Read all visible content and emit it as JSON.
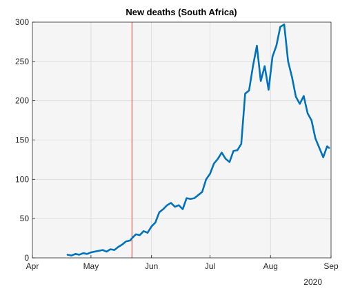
{
  "chart_data": {
    "type": "line",
    "title": "New deaths (South Africa)",
    "xlabel": "",
    "ylabel": "",
    "x_tick_labels": [
      "Apr",
      "May",
      "Jun",
      "Jul",
      "Aug",
      "Sep"
    ],
    "x_tick_dates": [
      "2020-04-01",
      "2020-05-01",
      "2020-06-01",
      "2020-07-01",
      "2020-08-01",
      "2020-09-01"
    ],
    "year_label": "2020",
    "xlim": [
      "2020-04-01",
      "2020-09-01"
    ],
    "ylim": [
      0,
      300
    ],
    "y_ticks": [
      0,
      50,
      100,
      150,
      200,
      250,
      300
    ],
    "grid": true,
    "background_color": "#f5f5f5",
    "line_color": "#0072bd",
    "vertical_marker": {
      "date": "2020-05-22",
      "color": "#c0392b"
    },
    "series": [
      {
        "x": [
          "2020-04-19",
          "2020-04-21",
          "2020-04-23",
          "2020-04-25",
          "2020-04-27",
          "2020-04-29",
          "2020-05-01",
          "2020-05-03",
          "2020-05-05",
          "2020-05-07",
          "2020-05-09",
          "2020-05-11",
          "2020-05-13",
          "2020-05-15",
          "2020-05-17",
          "2020-05-19",
          "2020-05-21",
          "2020-05-22",
          "2020-05-24",
          "2020-05-26",
          "2020-05-28",
          "2020-05-30",
          "2020-06-01",
          "2020-06-03",
          "2020-06-05",
          "2020-06-07",
          "2020-06-09",
          "2020-06-11",
          "2020-06-13",
          "2020-06-15",
          "2020-06-17",
          "2020-06-19",
          "2020-06-21",
          "2020-06-23",
          "2020-06-25",
          "2020-06-27",
          "2020-06-29",
          "2020-07-01",
          "2020-07-03",
          "2020-07-05",
          "2020-07-07",
          "2020-07-09",
          "2020-07-11",
          "2020-07-13",
          "2020-07-15",
          "2020-07-17",
          "2020-07-19",
          "2020-07-21",
          "2020-07-23",
          "2020-07-25",
          "2020-07-27",
          "2020-07-29",
          "2020-07-31",
          "2020-08-02",
          "2020-08-04",
          "2020-08-06",
          "2020-08-08",
          "2020-08-10",
          "2020-08-12",
          "2020-08-14",
          "2020-08-16",
          "2020-08-18",
          "2020-08-20",
          "2020-08-22",
          "2020-08-24",
          "2020-08-26",
          "2020-08-28",
          "2020-08-30",
          "2020-08-31"
        ],
        "y": [
          4,
          3,
          5,
          4,
          6,
          5,
          7,
          8,
          9,
          10,
          8,
          11,
          10,
          14,
          17,
          21,
          22,
          25,
          30,
          29,
          34,
          32,
          40,
          45,
          58,
          62,
          67,
          70,
          65,
          67,
          62,
          76,
          75,
          76,
          80,
          84,
          100,
          107,
          120,
          126,
          134,
          126,
          122,
          136,
          137,
          145,
          209,
          213,
          244,
          270,
          225,
          244,
          214,
          256,
          270,
          294,
          297,
          250,
          230,
          205,
          196,
          206,
          184,
          175,
          152,
          140,
          128,
          142,
          140
        ]
      }
    ]
  }
}
